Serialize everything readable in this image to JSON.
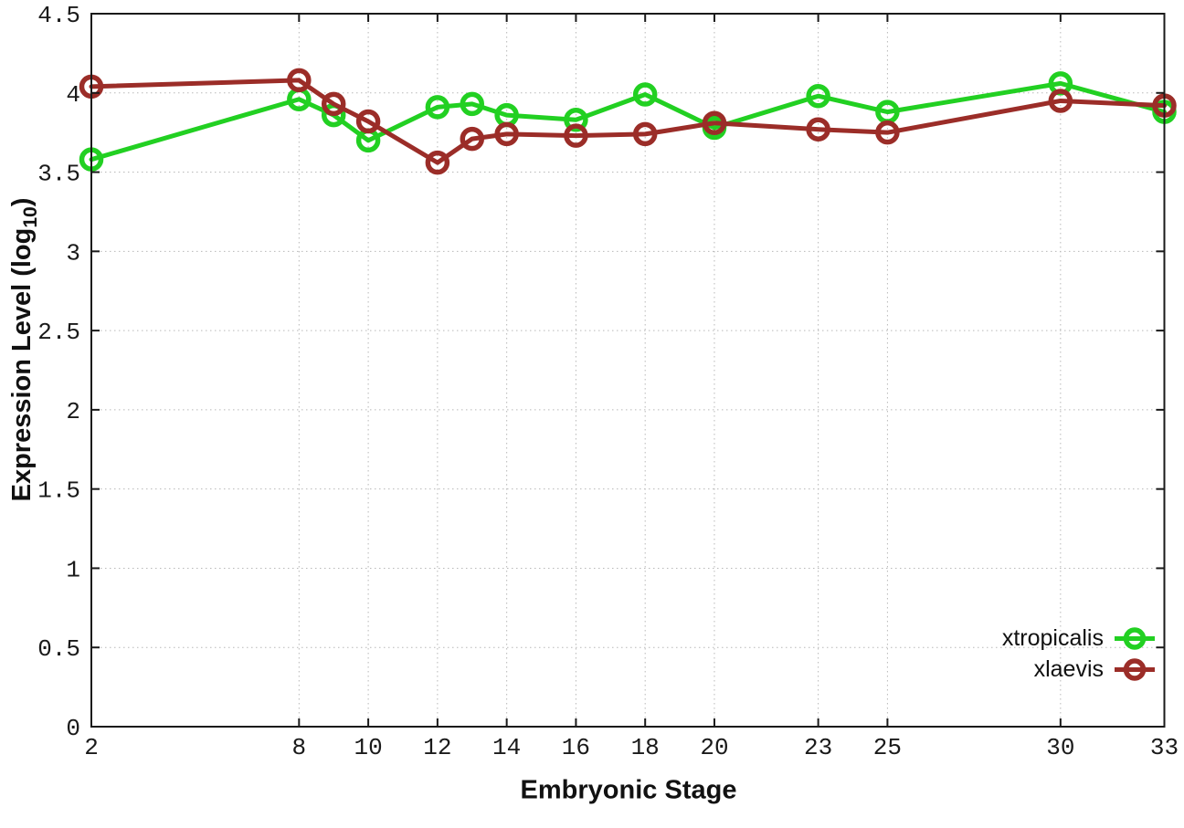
{
  "chart_data": {
    "type": "line",
    "title": "",
    "xlabel": "Embryonic Stage",
    "ylabel_parts": {
      "pre": "Expression Level (log",
      "sub": "10",
      "post": ")"
    },
    "xlim": [
      2,
      33
    ],
    "ylim": [
      0,
      4.5
    ],
    "grid": true,
    "legend_position": "inside-bottom-right",
    "x": [
      2,
      8,
      9,
      10,
      12,
      13,
      14,
      16,
      18,
      20,
      23,
      25,
      30,
      33
    ],
    "xticks": {
      "values": [
        2,
        8,
        10,
        12,
        14,
        16,
        18,
        20,
        23,
        25,
        30,
        33
      ],
      "labels": [
        "2",
        "8",
        "10",
        "12",
        "14",
        "16",
        "18",
        "20",
        "23",
        "25",
        "30",
        "33"
      ]
    },
    "yticks": {
      "values": [
        0,
        0.5,
        1,
        1.5,
        2,
        2.5,
        3,
        3.5,
        4,
        4.5
      ],
      "labels": [
        "0",
        "0.5",
        "1",
        "1.5",
        "2",
        "2.5",
        "3",
        "3.5",
        "4",
        "4.5"
      ]
    },
    "series": [
      {
        "name": "xtropicalis",
        "color": "#22d022",
        "values": [
          3.58,
          3.96,
          3.86,
          3.7,
          3.91,
          3.93,
          3.86,
          3.83,
          3.99,
          3.78,
          3.98,
          3.88,
          4.06,
          3.88
        ]
      },
      {
        "name": "xlaevis",
        "color": "#9b2d28",
        "values": [
          4.04,
          4.08,
          3.93,
          3.82,
          3.56,
          3.71,
          3.74,
          3.73,
          3.74,
          3.81,
          3.77,
          3.75,
          3.95,
          3.92
        ]
      }
    ],
    "style": {
      "border_color": "#1a1a1a",
      "grid_color": "#b8b8b8",
      "tick_text_color": "#1a1a1a",
      "line_width": 5,
      "marker_radius": 10.5,
      "marker_stroke": 5.5
    }
  }
}
